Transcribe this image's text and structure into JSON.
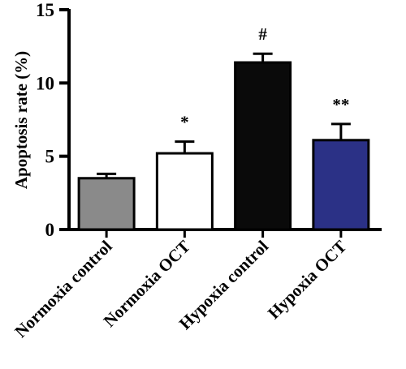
{
  "chart_data": {
    "type": "bar",
    "title": "",
    "xlabel": "",
    "ylabel": "Apoptosis rate (%)",
    "ylim": [
      0,
      15
    ],
    "yticks": [
      0,
      5,
      10,
      15
    ],
    "categories": [
      "Normoxia control",
      "Normoxia OCT",
      "Hypoxia control",
      "Hypoxia OCT"
    ],
    "values": [
      3.5,
      5.2,
      11.4,
      6.1
    ],
    "errors": [
      0.3,
      0.8,
      0.6,
      1.1
    ],
    "annotations": [
      "",
      "*",
      "#",
      "**"
    ],
    "bar_colors": [
      "#8a8a8a",
      "#ffffff",
      "#0a0a0a",
      "#2b3186"
    ],
    "grid": false,
    "legend": "none"
  }
}
